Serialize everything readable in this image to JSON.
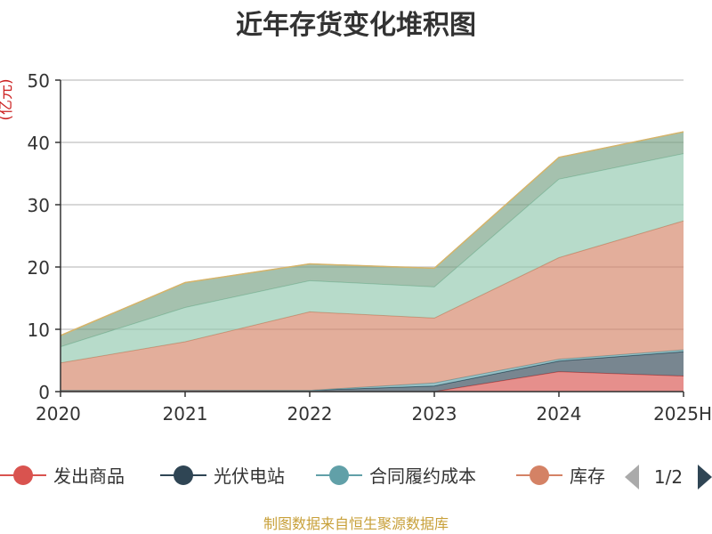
{
  "chart_data": {
    "type": "area",
    "title": "近年存货变化堆积图",
    "unit_label": "(亿元)",
    "categories": [
      "2020",
      "2021",
      "2022",
      "2023",
      "2024",
      "2025H"
    ],
    "ylim": [
      0,
      50
    ],
    "yticks": [
      0,
      10,
      20,
      30,
      40,
      50
    ],
    "grid": true,
    "stacked": true,
    "series": [
      {
        "name": "发出商品",
        "color": "#d9534f",
        "values": [
          0.2,
          0.2,
          0.0,
          0.0,
          3.2,
          2.5
        ]
      },
      {
        "name": "光伏电站",
        "color": "#2f4554",
        "values": [
          0.0,
          0.0,
          0.2,
          0.9,
          1.7,
          3.9
        ]
      },
      {
        "name": "合同履约成本",
        "color": "#61a0a8",
        "values": [
          0.0,
          0.0,
          0.0,
          0.5,
          0.3,
          0.3
        ]
      },
      {
        "name": "库存",
        "color": "#d48265",
        "values": [
          4.4,
          7.8,
          12.6,
          10.4,
          16.3,
          20.7
        ]
      },
      {
        "name": "",
        "color": "#91c7ae",
        "values": [
          2.6,
          5.5,
          5.0,
          5.0,
          12.6,
          10.8
        ]
      },
      {
        "name": "",
        "color": "#749f83",
        "values": [
          1.8,
          4.0,
          2.7,
          3.0,
          3.5,
          3.5
        ]
      }
    ],
    "legend": {
      "position": "bottom",
      "visible_items": [
        "发出商品",
        "光伏电站",
        "合同履约成本",
        "库存"
      ],
      "page": "1/2"
    }
  },
  "footer": "制图数据来自恒生聚源数据库"
}
